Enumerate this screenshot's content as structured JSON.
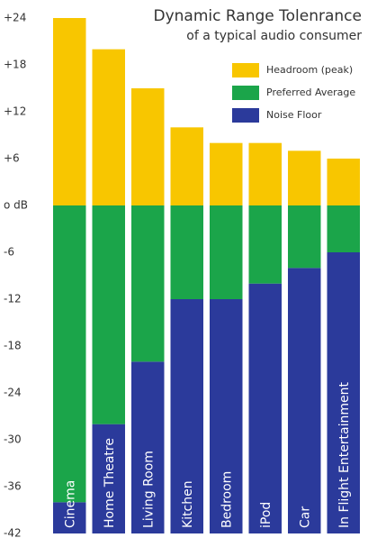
{
  "chart_data": {
    "type": "range-bar",
    "title": "Dynamic Range Tolenrance",
    "subtitle": "of a typical audio consumer",
    "categories": [
      "Cinema",
      "Home Theatre",
      "Living Room",
      "Kitchen",
      "Bedroom",
      "iPod",
      "Car",
      "In Flight Entertainment"
    ],
    "series": [
      {
        "name": "Headroom (peak)",
        "color": "#f8c600",
        "values": [
          24,
          20,
          15,
          10,
          8,
          8,
          7,
          6
        ]
      },
      {
        "name": "Preferred Average",
        "color": "#1ba54a",
        "values": [
          0,
          0,
          0,
          0,
          0,
          0,
          0,
          0
        ]
      },
      {
        "name": "Noise Floor",
        "color": "#2b3a9b",
        "values": [
          -38,
          -28,
          -20,
          -12,
          -12,
          -10,
          -8,
          -6
        ]
      }
    ],
    "ylim": [
      -42,
      24
    ],
    "yticks": [
      {
        "value": 24,
        "label": "+24"
      },
      {
        "value": 18,
        "label": "+18"
      },
      {
        "value": 12,
        "label": "+12"
      },
      {
        "value": 6,
        "label": "+6"
      },
      {
        "value": 0,
        "label": "o dB"
      },
      -6,
      -12,
      -18,
      -24,
      -30,
      -36,
      -42
    ],
    "grid": false,
    "legend": "top-right"
  }
}
